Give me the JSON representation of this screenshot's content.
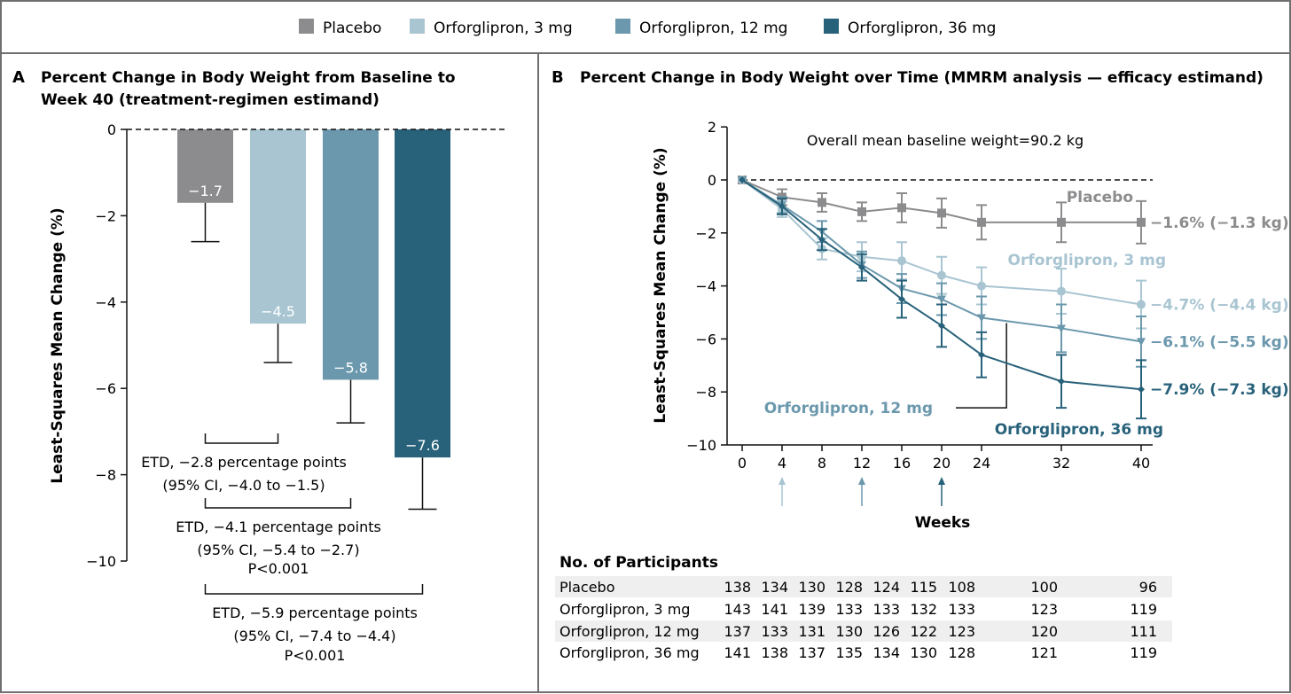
{
  "legend": [
    {
      "label": "Placebo",
      "color": "#8c8c8e"
    },
    {
      "label": "Orforglipron, 3 mg",
      "color": "#a9c5d2"
    },
    {
      "label": "Orforglipron, 12 mg",
      "color": "#6b98ad"
    },
    {
      "label": "Orforglipron, 36 mg",
      "color": "#28627a"
    }
  ],
  "chart_data": [
    {
      "type": "bar",
      "panel_letter": "A",
      "title_lines": [
        "Percent Change in Body Weight from Baseline to",
        "Week 40 (treatment-regimen estimand)"
      ],
      "ylabel": "Least-Squares Mean Change (%)",
      "ylim": [
        -10,
        0
      ],
      "yticks": [
        0,
        -2,
        -4,
        -6,
        -8,
        -10
      ],
      "ytick_labels": [
        "0",
        "−2",
        "−4",
        "−6",
        "−8",
        "−10"
      ],
      "categories": [
        "Placebo",
        "Orforglipron, 3 mg",
        "Orforglipron, 12 mg",
        "Orforglipron, 36 mg"
      ],
      "values": [
        -1.7,
        -4.5,
        -5.8,
        -7.6
      ],
      "value_labels": [
        "−1.7",
        "−4.5",
        "−5.8",
        "−7.6"
      ],
      "error_lower": [
        -2.6,
        -5.4,
        -6.8,
        -8.8
      ],
      "comparisons": [
        {
          "vs": 1,
          "lines": [
            "ETD, −2.8 percentage points",
            "(95% CI, −4.0 to −1.5)"
          ]
        },
        {
          "vs": 2,
          "lines": [
            "ETD, −4.1 percentage points",
            "(95% CI, −5.4 to −2.7)",
            "P<0.001"
          ]
        },
        {
          "vs": 3,
          "lines": [
            "ETD, −5.9 percentage points",
            "(95% CI, −7.4 to −4.4)",
            "P<0.001"
          ]
        }
      ]
    },
    {
      "type": "line",
      "panel_letter": "B",
      "title": "Percent Change in Body Weight over Time (MMRM analysis — efficacy estimand)",
      "annotation": "Overall mean baseline weight=90.2 kg",
      "ylabel": "Least-Squares Mean Change (%)",
      "xlabel": "Weeks",
      "ylim": [
        -10,
        2
      ],
      "yticks": [
        2,
        0,
        -2,
        -4,
        -6,
        -8,
        -10
      ],
      "ytick_labels": [
        "2",
        "0",
        "−2",
        "−4",
        "−6",
        "−8",
        "−10"
      ],
      "x": [
        0,
        4,
        8,
        12,
        16,
        20,
        24,
        32,
        40
      ],
      "xtick_labels": [
        "0",
        "4",
        "8",
        "12",
        "16",
        "20",
        "24",
        "32",
        "40"
      ],
      "dose_escalation_arrows_weeks": [
        4,
        12,
        20
      ],
      "series": [
        {
          "name": "Placebo",
          "label": "Placebo",
          "end_label": "−1.6% (−1.3 kg)",
          "marker": "square",
          "values": [
            0,
            -0.65,
            -0.85,
            -1.2,
            -1.05,
            -1.25,
            -1.6,
            -1.6,
            -1.6
          ],
          "ci_half": [
            0,
            0.3,
            0.35,
            0.35,
            0.55,
            0.55,
            0.65,
            0.75,
            0.8
          ]
        },
        {
          "name": "Orforglipron, 3 mg",
          "label": "Orforglipron, 3 mg",
          "end_label": "−4.7% (−4.4 kg)",
          "marker": "circle",
          "values": [
            0,
            -1.1,
            -2.6,
            -2.9,
            -3.05,
            -3.6,
            -4.0,
            -4.2,
            -4.7
          ],
          "ci_half": [
            0,
            0.3,
            0.4,
            0.55,
            0.7,
            0.7,
            0.7,
            0.85,
            0.9
          ]
        },
        {
          "name": "Orforglipron, 12 mg",
          "label": "Orforglipron, 12 mg",
          "end_label": "−6.1% (−5.5 kg)",
          "marker": "triangle",
          "values": [
            0,
            -0.95,
            -1.95,
            -3.2,
            -4.1,
            -4.5,
            -5.2,
            -5.6,
            -6.1
          ],
          "ci_half": [
            0,
            0.3,
            0.4,
            0.5,
            0.55,
            0.6,
            0.8,
            0.9,
            0.95
          ]
        },
        {
          "name": "Orforglipron, 36 mg",
          "label": "Orforglipron, 36 mg",
          "end_label": "−7.9% (−7.3 kg)",
          "marker": "diamond",
          "values": [
            0,
            -1.0,
            -2.25,
            -3.3,
            -4.5,
            -5.5,
            -6.6,
            -7.6,
            -7.9
          ],
          "ci_half": [
            0,
            0.3,
            0.4,
            0.5,
            0.7,
            0.8,
            0.85,
            1.0,
            1.1
          ]
        }
      ],
      "participants": {
        "title": "No. of Participants",
        "rows": [
          {
            "label": "Placebo",
            "values": [
              "138",
              "134",
              "130",
              "128",
              "124",
              "115",
              "108",
              "100",
              "96"
            ]
          },
          {
            "label": "Orforglipron, 3 mg",
            "values": [
              "143",
              "141",
              "139",
              "133",
              "133",
              "132",
              "133",
              "123",
              "119"
            ]
          },
          {
            "label": "Orforglipron, 12 mg",
            "values": [
              "137",
              "133",
              "131",
              "130",
              "126",
              "122",
              "123",
              "120",
              "111"
            ]
          },
          {
            "label": "Orforglipron, 36 mg",
            "values": [
              "141",
              "138",
              "137",
              "135",
              "134",
              "130",
              "128",
              "121",
              "119"
            ]
          }
        ]
      }
    }
  ]
}
